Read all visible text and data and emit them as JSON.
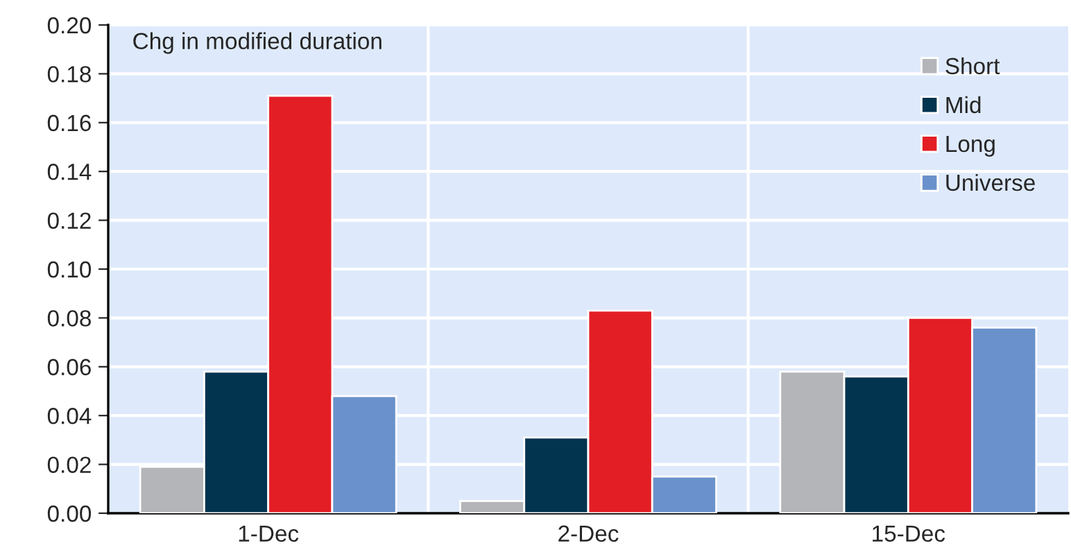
{
  "chart_data": {
    "type": "bar",
    "categories": [
      "1-Dec",
      "2-Dec",
      "15-Dec"
    ],
    "series": [
      {
        "name": "Short",
        "color": "#b4b5b8",
        "values": [
          0.019,
          0.005,
          0.058
        ]
      },
      {
        "name": "Mid",
        "color": "#02334f",
        "values": [
          0.058,
          0.031,
          0.056
        ]
      },
      {
        "name": "Long",
        "color": "#e31e24",
        "values": [
          0.171,
          0.083,
          0.08
        ]
      },
      {
        "name": "Universe",
        "color": "#6a91cb",
        "values": [
          0.048,
          0.015,
          0.076
        ]
      }
    ],
    "annotations": [
      "Chg in modified duration"
    ],
    "ylim": [
      0,
      0.2
    ],
    "yticks": [
      {
        "value": 0,
        "label": "0.00"
      },
      {
        "value": 0.02,
        "label": "0.02"
      },
      {
        "value": 0.04,
        "label": "0.04"
      },
      {
        "value": 0.06,
        "label": "0.06"
      },
      {
        "value": 0.08,
        "label": "0.08"
      },
      {
        "value": 0.1,
        "label": "0.10"
      },
      {
        "value": 0.12,
        "label": "0.12"
      },
      {
        "value": 0.14,
        "label": "0.14"
      },
      {
        "value": 0.16,
        "label": "0.16"
      },
      {
        "value": 0.18,
        "label": "0.18"
      },
      {
        "value": 0.2,
        "label": "0.20"
      }
    ],
    "grid": true,
    "legend": "top right"
  }
}
